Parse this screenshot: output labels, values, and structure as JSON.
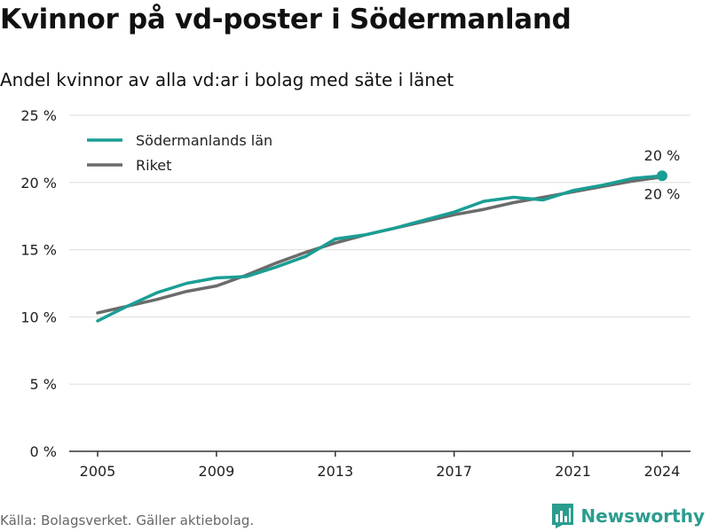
{
  "header": {
    "title": "Kvinnor på vd-poster i Södermanland",
    "subtitle": "Andel kvinnor av alla vd:ar i bolag med säte i länet"
  },
  "footer": {
    "source": "Källa: Bolagsverket. Gäller aktiebolag.",
    "brand": "Newsworthy"
  },
  "colors": {
    "sodermanland": "#1a9e94",
    "riket": "#6b6b6b",
    "grid": "#dddddd",
    "brand": "#2a9d8f"
  },
  "chart_data": {
    "type": "line",
    "title": "Kvinnor på vd-poster i Södermanland",
    "subtitle": "Andel kvinnor av alla vd:ar i bolag med säte i länet",
    "xlabel": "",
    "ylabel": "",
    "x": [
      2005,
      2006,
      2007,
      2008,
      2009,
      2010,
      2011,
      2012,
      2013,
      2014,
      2015,
      2016,
      2017,
      2018,
      2019,
      2020,
      2021,
      2022,
      2023,
      2024
    ],
    "x_ticks": [
      2005,
      2009,
      2013,
      2017,
      2021,
      2024
    ],
    "y_ticks": [
      {
        "value": 0,
        "label": "0 %"
      },
      {
        "value": 5,
        "label": "5 %"
      },
      {
        "value": 10,
        "label": "10 %"
      },
      {
        "value": 15,
        "label": "15 %"
      },
      {
        "value": 20,
        "label": "20 %"
      },
      {
        "value": 25,
        "label": "25 %"
      }
    ],
    "ylim": [
      0,
      25
    ],
    "grid": true,
    "legend_position": "top-left",
    "series": [
      {
        "name": "Södermanlands län",
        "color": "#1a9e94",
        "values": [
          9.7,
          10.8,
          11.8,
          12.5,
          12.9,
          13.0,
          13.7,
          14.5,
          15.8,
          16.1,
          16.6,
          17.2,
          17.8,
          18.6,
          18.9,
          18.7,
          19.4,
          19.8,
          20.3,
          20.5
        ],
        "end_label": "20 %",
        "end_marker": true
      },
      {
        "name": "Riket",
        "color": "#6b6b6b",
        "values": [
          10.3,
          10.8,
          11.3,
          11.9,
          12.3,
          13.1,
          14.0,
          14.8,
          15.5,
          16.1,
          16.6,
          17.1,
          17.6,
          18.0,
          18.5,
          18.9,
          19.3,
          19.7,
          20.1,
          20.4
        ],
        "end_label": "20 %",
        "end_marker": false
      }
    ]
  }
}
